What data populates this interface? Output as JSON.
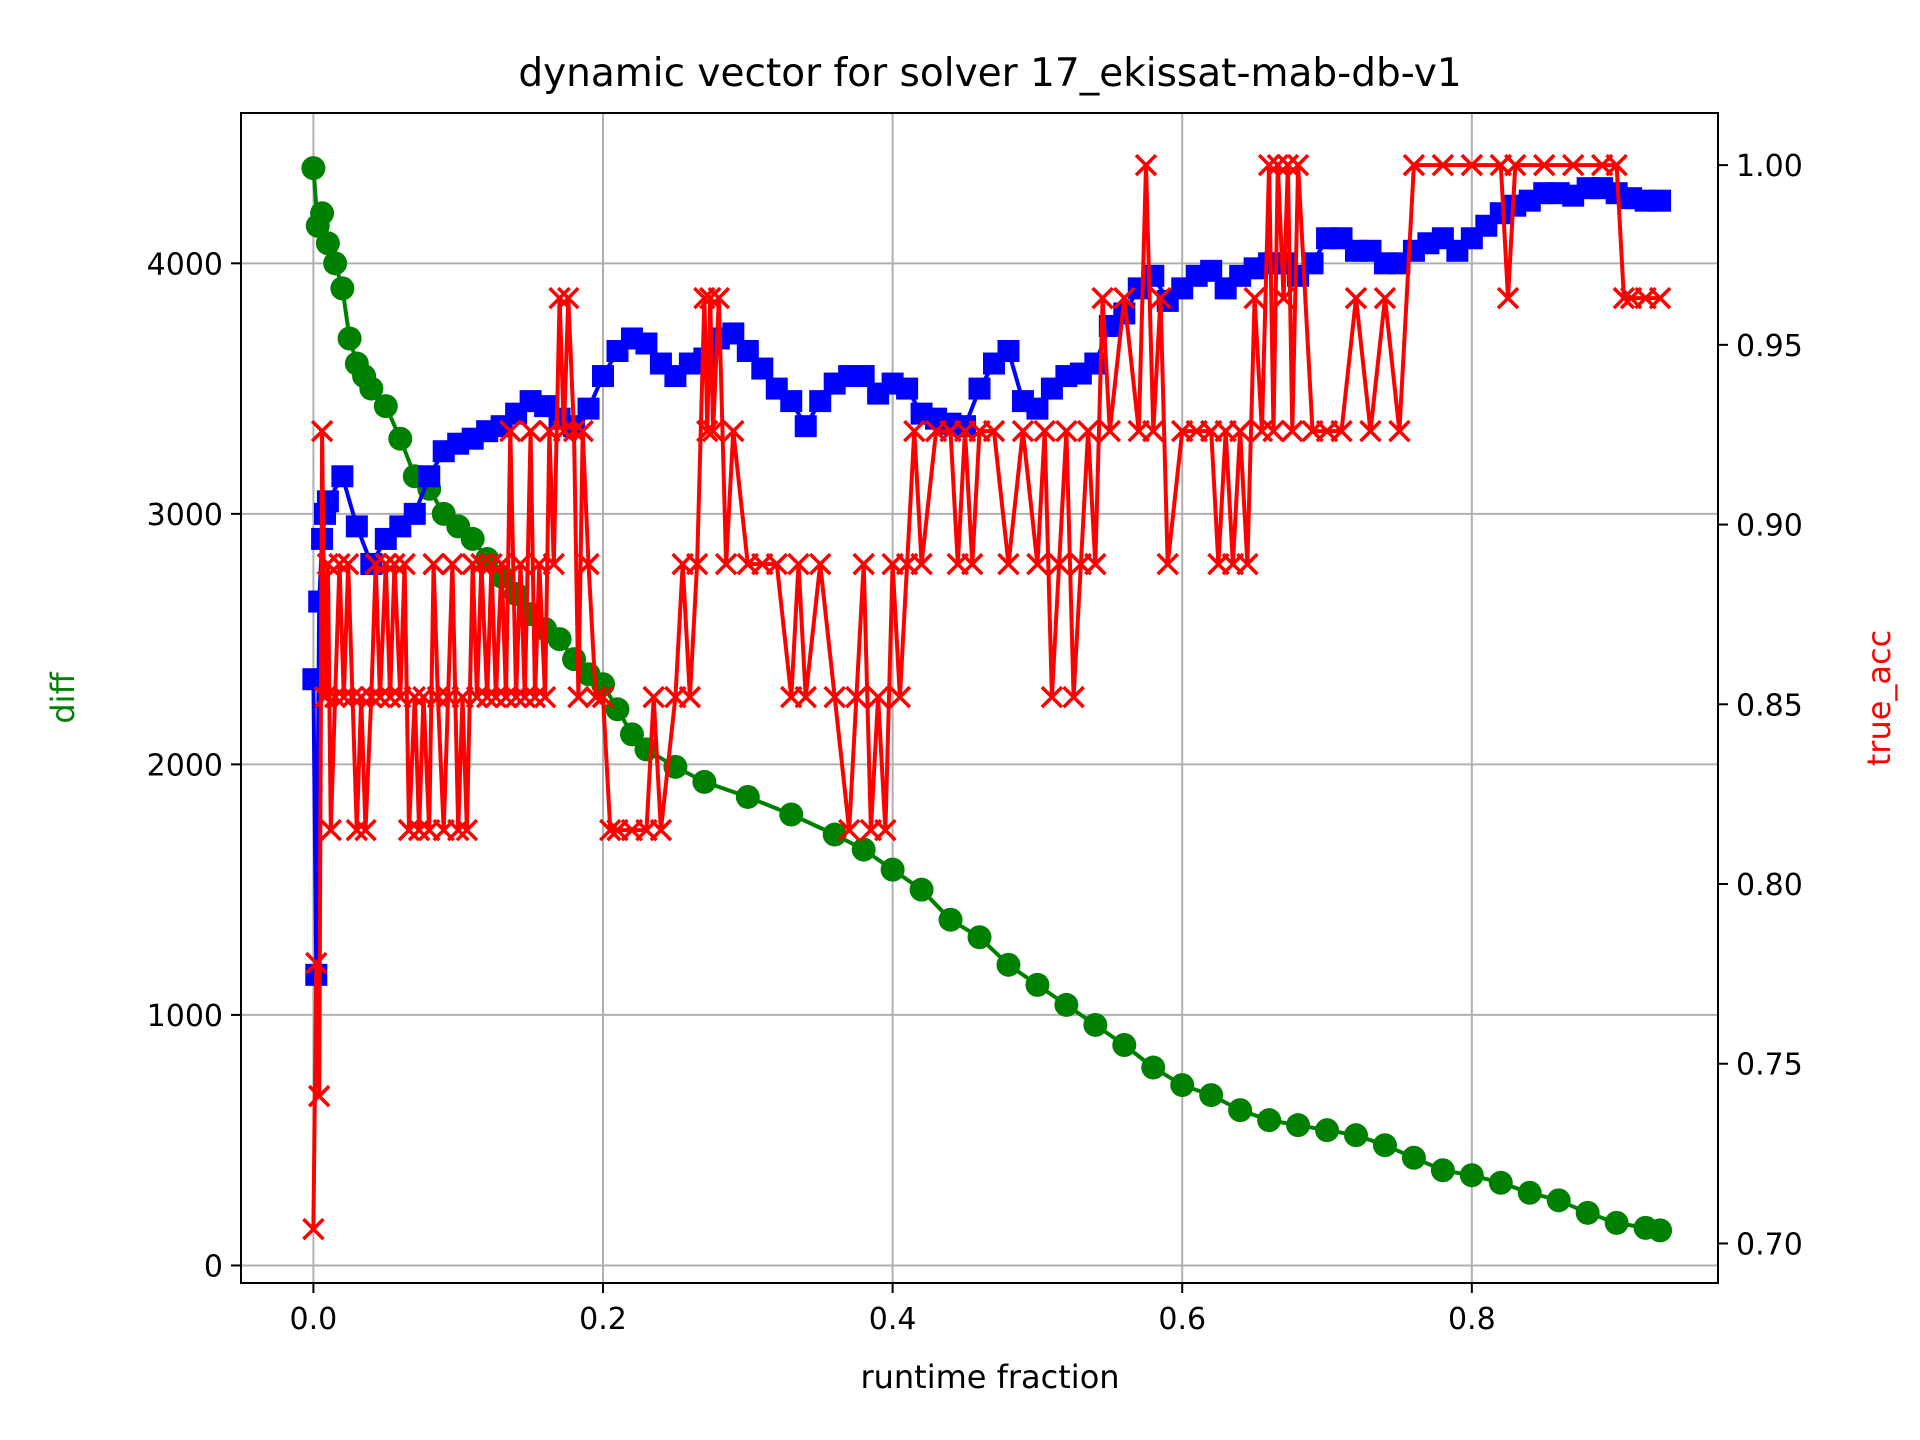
{
  "chart_data": {
    "type": "line",
    "title": "dynamic vector for solver 17_ekissat-mab-db-v1",
    "xlabel": "runtime fraction",
    "ylabel": "diff",
    "y2label": "true_acc",
    "xlim": [
      -0.05,
      0.97
    ],
    "ylim": [
      -70,
      4600
    ],
    "y2lim": [
      0.689,
      1.0145
    ],
    "xticks": [
      "0.0",
      "0.2",
      "0.4",
      "0.6",
      "0.8"
    ],
    "yticks": [
      "0",
      "1000",
      "2000",
      "3000",
      "4000"
    ],
    "y2ticks": [
      "0.70",
      "0.75",
      "0.80",
      "0.85",
      "0.90",
      "0.95",
      "1.00"
    ],
    "grid": true,
    "colors": {
      "diff": "#008000",
      "blue_series": "#0000ff",
      "true_acc": "#ff0000"
    },
    "series": [
      {
        "axis": "left",
        "marker": "circle",
        "color": "#008000",
        "x": [
          0.0,
          0.003,
          0.006,
          0.01,
          0.015,
          0.02,
          0.025,
          0.03,
          0.035,
          0.04,
          0.05,
          0.06,
          0.07,
          0.08,
          0.09,
          0.1,
          0.11,
          0.12,
          0.13,
          0.14,
          0.15,
          0.16,
          0.17,
          0.18,
          0.19,
          0.2,
          0.21,
          0.22,
          0.23,
          0.25,
          0.27,
          0.3,
          0.33,
          0.36,
          0.38,
          0.4,
          0.42,
          0.44,
          0.46,
          0.48,
          0.5,
          0.52,
          0.54,
          0.56,
          0.58,
          0.6,
          0.62,
          0.64,
          0.66,
          0.68,
          0.7,
          0.72,
          0.74,
          0.76,
          0.78,
          0.8,
          0.82,
          0.84,
          0.86,
          0.88,
          0.9,
          0.92,
          0.93
        ],
        "y": [
          4380,
          4150,
          4200,
          4080,
          4000,
          3900,
          3700,
          3600,
          3550,
          3500,
          3430,
          3300,
          3150,
          3100,
          3000,
          2950,
          2900,
          2820,
          2750,
          2680,
          2600,
          2540,
          2500,
          2420,
          2360,
          2320,
          2220,
          2120,
          2060,
          1990,
          1930,
          1870,
          1800,
          1720,
          1660,
          1580,
          1500,
          1380,
          1310,
          1200,
          1120,
          1040,
          960,
          880,
          790,
          720,
          680,
          620,
          580,
          560,
          540,
          520,
          480,
          430,
          380,
          360,
          330,
          290,
          260,
          210,
          170,
          150,
          140
        ]
      },
      {
        "axis": "left",
        "marker": "square",
        "color": "#0000ff",
        "x": [
          0.0,
          0.002,
          0.004,
          0.006,
          0.008,
          0.01,
          0.02,
          0.03,
          0.04,
          0.05,
          0.06,
          0.07,
          0.08,
          0.09,
          0.1,
          0.11,
          0.12,
          0.13,
          0.14,
          0.15,
          0.16,
          0.17,
          0.18,
          0.19,
          0.2,
          0.21,
          0.22,
          0.23,
          0.24,
          0.25,
          0.26,
          0.27,
          0.28,
          0.29,
          0.3,
          0.31,
          0.32,
          0.33,
          0.34,
          0.35,
          0.36,
          0.37,
          0.38,
          0.39,
          0.4,
          0.41,
          0.42,
          0.43,
          0.44,
          0.45,
          0.46,
          0.47,
          0.48,
          0.49,
          0.5,
          0.51,
          0.52,
          0.53,
          0.54,
          0.55,
          0.56,
          0.57,
          0.58,
          0.59,
          0.6,
          0.61,
          0.62,
          0.63,
          0.64,
          0.65,
          0.66,
          0.67,
          0.68,
          0.69,
          0.7,
          0.71,
          0.72,
          0.73,
          0.74,
          0.75,
          0.76,
          0.77,
          0.78,
          0.79,
          0.8,
          0.81,
          0.82,
          0.83,
          0.84,
          0.85,
          0.86,
          0.87,
          0.88,
          0.89,
          0.9,
          0.91,
          0.92,
          0.93
        ],
        "y": [
          2340,
          1160,
          2650,
          2900,
          3000,
          3050,
          3150,
          2950,
          2800,
          2900,
          2950,
          3000,
          3150,
          3250,
          3280,
          3300,
          3330,
          3350,
          3400,
          3450,
          3430,
          3380,
          3350,
          3420,
          3550,
          3650,
          3700,
          3680,
          3600,
          3550,
          3600,
          3620,
          3700,
          3720,
          3650,
          3580,
          3500,
          3450,
          3350,
          3450,
          3520,
          3550,
          3550,
          3480,
          3520,
          3500,
          3400,
          3380,
          3360,
          3350,
          3500,
          3600,
          3650,
          3450,
          3420,
          3500,
          3550,
          3560,
          3600,
          3750,
          3800,
          3900,
          3950,
          3850,
          3900,
          3950,
          3970,
          3900,
          3950,
          3980,
          4000,
          4000,
          3950,
          4000,
          4100,
          4100,
          4050,
          4050,
          4000,
          4000,
          4050,
          4080,
          4100,
          4050,
          4100,
          4150,
          4200,
          4230,
          4250,
          4280,
          4280,
          4270,
          4300,
          4300,
          4280,
          4260,
          4250,
          4250
        ]
      },
      {
        "axis": "right",
        "marker": "x",
        "color": "#ff0000",
        "x": [
          0.0,
          0.002,
          0.004,
          0.006,
          0.008,
          0.01,
          0.012,
          0.015,
          0.018,
          0.021,
          0.024,
          0.027,
          0.03,
          0.033,
          0.036,
          0.04,
          0.043,
          0.046,
          0.05,
          0.053,
          0.056,
          0.06,
          0.063,
          0.066,
          0.07,
          0.073,
          0.076,
          0.08,
          0.083,
          0.086,
          0.09,
          0.093,
          0.096,
          0.1,
          0.103,
          0.106,
          0.11,
          0.113,
          0.116,
          0.12,
          0.123,
          0.126,
          0.13,
          0.133,
          0.136,
          0.14,
          0.143,
          0.146,
          0.15,
          0.153,
          0.156,
          0.16,
          0.163,
          0.166,
          0.17,
          0.173,
          0.176,
          0.18,
          0.183,
          0.186,
          0.19,
          0.195,
          0.2,
          0.205,
          0.21,
          0.22,
          0.23,
          0.235,
          0.24,
          0.25,
          0.255,
          0.26,
          0.265,
          0.27,
          0.272,
          0.274,
          0.276,
          0.28,
          0.285,
          0.29,
          0.3,
          0.31,
          0.32,
          0.33,
          0.335,
          0.34,
          0.35,
          0.36,
          0.37,
          0.375,
          0.38,
          0.385,
          0.39,
          0.395,
          0.4,
          0.405,
          0.41,
          0.415,
          0.42,
          0.43,
          0.44,
          0.445,
          0.45,
          0.455,
          0.46,
          0.47,
          0.48,
          0.49,
          0.5,
          0.505,
          0.51,
          0.515,
          0.52,
          0.525,
          0.53,
          0.535,
          0.54,
          0.545,
          0.55,
          0.56,
          0.57,
          0.575,
          0.58,
          0.585,
          0.59,
          0.6,
          0.61,
          0.62,
          0.625,
          0.63,
          0.635,
          0.64,
          0.645,
          0.65,
          0.655,
          0.66,
          0.663,
          0.666,
          0.67,
          0.673,
          0.676,
          0.68,
          0.69,
          0.7,
          0.71,
          0.72,
          0.73,
          0.74,
          0.75,
          0.76,
          0.78,
          0.8,
          0.82,
          0.825,
          0.83,
          0.85,
          0.87,
          0.89,
          0.9,
          0.905,
          0.91,
          0.92,
          0.93
        ],
        "y": [
          0.704,
          0.778,
          0.741,
          0.926,
          0.852,
          0.889,
          0.815,
          0.852,
          0.889,
          0.852,
          0.889,
          0.852,
          0.815,
          0.852,
          0.815,
          0.852,
          0.889,
          0.852,
          0.889,
          0.852,
          0.889,
          0.852,
          0.889,
          0.815,
          0.852,
          0.815,
          0.852,
          0.815,
          0.889,
          0.852,
          0.815,
          0.852,
          0.889,
          0.815,
          0.852,
          0.815,
          0.889,
          0.852,
          0.889,
          0.852,
          0.889,
          0.852,
          0.889,
          0.852,
          0.926,
          0.852,
          0.889,
          0.852,
          0.926,
          0.852,
          0.889,
          0.852,
          0.926,
          0.889,
          0.963,
          0.926,
          0.963,
          0.926,
          0.852,
          0.926,
          0.889,
          0.852,
          0.852,
          0.815,
          0.815,
          0.815,
          0.815,
          0.852,
          0.815,
          0.852,
          0.889,
          0.852,
          0.889,
          0.963,
          0.926,
          0.963,
          0.926,
          0.963,
          0.889,
          0.926,
          0.889,
          0.889,
          0.889,
          0.852,
          0.889,
          0.852,
          0.889,
          0.852,
          0.815,
          0.852,
          0.889,
          0.815,
          0.852,
          0.815,
          0.889,
          0.852,
          0.889,
          0.926,
          0.889,
          0.926,
          0.926,
          0.889,
          0.926,
          0.889,
          0.926,
          0.926,
          0.889,
          0.926,
          0.889,
          0.926,
          0.852,
          0.889,
          0.926,
          0.852,
          0.889,
          0.926,
          0.889,
          0.963,
          0.926,
          0.963,
          0.926,
          1.0,
          0.926,
          0.963,
          0.889,
          0.926,
          0.926,
          0.926,
          0.889,
          0.926,
          0.889,
          0.926,
          0.889,
          0.963,
          0.926,
          1.0,
          0.926,
          1.0,
          0.963,
          1.0,
          0.926,
          1.0,
          0.926,
          0.926,
          0.926,
          0.963,
          0.926,
          0.963,
          0.926,
          1.0,
          1.0,
          1.0,
          1.0,
          0.963,
          1.0,
          1.0,
          1.0,
          1.0,
          1.0,
          0.963,
          0.963,
          0.963,
          0.963
        ]
      }
    ]
  }
}
